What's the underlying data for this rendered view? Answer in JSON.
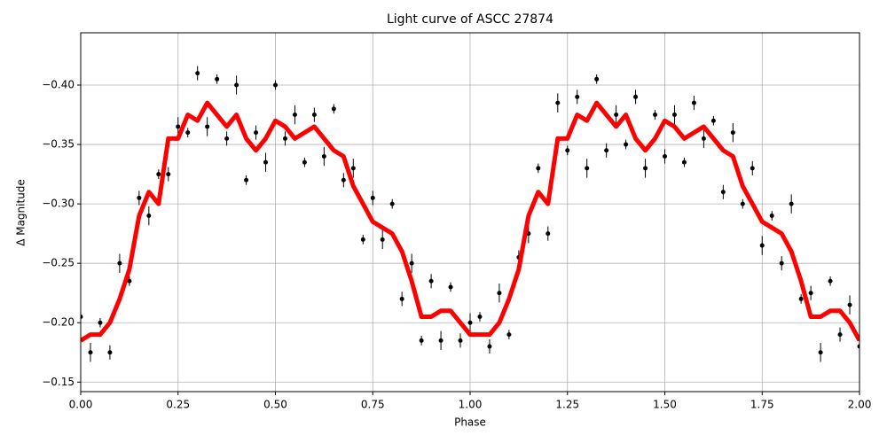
{
  "chart_data": {
    "type": "scatter",
    "title": "Light curve of ASCC 27874",
    "xlabel": "Phase",
    "ylabel": "Δ Magnitude",
    "xlim": [
      0,
      2
    ],
    "ylim": [
      -0.142,
      -0.444
    ],
    "grid": true,
    "xticks": [
      {
        "value": 0,
        "label": "0.00"
      },
      {
        "value": 0.25,
        "label": "0.25"
      },
      {
        "value": 0.5,
        "label": "0.50"
      },
      {
        "value": 0.75,
        "label": "0.75"
      },
      {
        "value": 1,
        "label": "1.00"
      },
      {
        "value": 1.25,
        "label": "1.25"
      },
      {
        "value": 1.5,
        "label": "1.50"
      },
      {
        "value": 1.75,
        "label": "1.75"
      },
      {
        "value": 2,
        "label": "2.00"
      }
    ],
    "yticks": [
      {
        "value": -0.4,
        "label": "−0.40"
      },
      {
        "value": -0.35,
        "label": "−0.35"
      },
      {
        "value": -0.3,
        "label": "−0.30"
      },
      {
        "value": -0.25,
        "label": "−0.25"
      },
      {
        "value": -0.2,
        "label": "−0.20"
      },
      {
        "value": -0.15,
        "label": "−0.15"
      }
    ],
    "series": [
      {
        "type": "errorbar",
        "color": "#000000",
        "x": [
          0,
          0.025,
          0.05,
          0.075,
          0.1,
          0.125,
          0.15,
          0.175,
          0.2,
          0.225,
          0.25,
          0.275,
          0.3,
          0.325,
          0.35,
          0.375,
          0.4,
          0.425,
          0.45,
          0.475,
          0.5,
          0.525,
          0.55,
          0.575,
          0.6,
          0.625,
          0.65,
          0.675,
          0.7,
          0.725,
          0.75,
          0.775,
          0.8,
          0.825,
          0.85,
          0.875,
          0.9,
          0.925,
          0.95,
          0.975,
          1,
          1.025,
          1.05,
          1.075,
          1.1,
          1.125,
          1.15,
          1.175,
          1.2,
          1.225,
          1.25,
          1.275,
          1.3,
          1.325,
          1.35,
          1.375,
          1.4,
          1.425,
          1.45,
          1.475,
          1.5,
          1.525,
          1.55,
          1.575,
          1.6,
          1.625,
          1.65,
          1.675,
          1.7,
          1.725,
          1.75,
          1.775,
          1.8,
          1.825,
          1.85,
          1.875,
          1.9,
          1.925,
          1.95,
          1.975,
          2
        ],
        "values": [
          -0.205,
          -0.175,
          -0.2,
          -0.175,
          -0.25,
          -0.235,
          -0.305,
          -0.29,
          -0.325,
          -0.325,
          -0.365,
          -0.36,
          -0.41,
          -0.365,
          -0.405,
          -0.355,
          -0.4,
          -0.32,
          -0.36,
          -0.335,
          -0.4,
          -0.355,
          -0.375,
          -0.335,
          -0.375,
          -0.34,
          -0.38,
          -0.32,
          -0.33,
          -0.27,
          -0.305,
          -0.27,
          -0.3,
          -0.22,
          -0.25,
          -0.185,
          -0.235,
          -0.185,
          -0.23,
          -0.185,
          -0.2,
          -0.205,
          -0.18,
          -0.225,
          -0.19,
          -0.255,
          -0.275,
          -0.33,
          -0.275,
          -0.385,
          -0.345,
          -0.39,
          -0.33,
          -0.405,
          -0.345,
          -0.375,
          -0.35,
          -0.39,
          -0.33,
          -0.375,
          -0.34,
          -0.375,
          -0.335,
          -0.385,
          -0.355,
          -0.37,
          -0.31,
          -0.36,
          -0.3,
          -0.33,
          -0.265,
          -0.29,
          -0.25,
          -0.3,
          -0.22,
          -0.225,
          -0.175,
          -0.235,
          -0.19,
          -0.215,
          -0.18
        ],
        "errors": [
          0.006,
          0.008,
          0.004,
          0.006,
          0.008,
          0.004,
          0.006,
          0.008,
          0.004,
          0.006,
          0.008,
          0.004,
          0.006,
          0.008,
          0.004,
          0.006,
          0.008,
          0.004,
          0.006,
          0.008,
          0.004,
          0.006,
          0.008,
          0.004,
          0.006,
          0.008,
          0.004,
          0.006,
          0.008,
          0.004,
          0.006,
          0.008,
          0.004,
          0.006,
          0.008,
          0.004,
          0.006,
          0.008,
          0.004,
          0.006,
          0.008,
          0.004,
          0.006,
          0.008,
          0.004,
          0.006,
          0.008,
          0.004,
          0.006,
          0.008,
          0.004,
          0.006,
          0.008,
          0.004,
          0.006,
          0.008,
          0.004,
          0.006,
          0.008,
          0.004,
          0.006,
          0.008,
          0.004,
          0.006,
          0.008,
          0.004,
          0.006,
          0.008,
          0.004,
          0.006,
          0.008,
          0.004,
          0.006,
          0.008,
          0.004,
          0.006,
          0.008,
          0.004,
          0.006,
          0.008,
          0.004
        ]
      },
      {
        "type": "line",
        "color": "#ff0000",
        "x": [
          0,
          0.025,
          0.05,
          0.075,
          0.1,
          0.125,
          0.15,
          0.175,
          0.2,
          0.225,
          0.25,
          0.275,
          0.3,
          0.325,
          0.35,
          0.375,
          0.4,
          0.425,
          0.45,
          0.475,
          0.5,
          0.525,
          0.55,
          0.575,
          0.6,
          0.625,
          0.65,
          0.675,
          0.7,
          0.725,
          0.75,
          0.775,
          0.8,
          0.825,
          0.85,
          0.875,
          0.9,
          0.925,
          0.95,
          0.975,
          1,
          1.025,
          1.05,
          1.075,
          1.1,
          1.125,
          1.15,
          1.175,
          1.2,
          1.225,
          1.25,
          1.275,
          1.3,
          1.325,
          1.35,
          1.375,
          1.4,
          1.425,
          1.45,
          1.475,
          1.5,
          1.525,
          1.55,
          1.575,
          1.6,
          1.625,
          1.65,
          1.675,
          1.7,
          1.725,
          1.75,
          1.775,
          1.8,
          1.825,
          1.85,
          1.875,
          1.9,
          1.925,
          1.95,
          1.975,
          2
        ],
        "values": [
          -0.185,
          -0.19,
          -0.19,
          -0.2,
          -0.22,
          -0.245,
          -0.29,
          -0.31,
          -0.3,
          -0.355,
          -0.355,
          -0.375,
          -0.37,
          -0.385,
          -0.375,
          -0.365,
          -0.375,
          -0.355,
          -0.345,
          -0.355,
          -0.37,
          -0.365,
          -0.355,
          -0.36,
          -0.365,
          -0.355,
          -0.345,
          -0.34,
          -0.315,
          -0.3,
          -0.285,
          -0.28,
          -0.275,
          -0.26,
          -0.235,
          -0.205,
          -0.205,
          -0.21,
          -0.21,
          -0.2,
          -0.19,
          -0.19,
          -0.19,
          -0.2,
          -0.22,
          -0.245,
          -0.29,
          -0.31,
          -0.3,
          -0.355,
          -0.355,
          -0.375,
          -0.37,
          -0.385,
          -0.375,
          -0.365,
          -0.375,
          -0.355,
          -0.345,
          -0.355,
          -0.37,
          -0.365,
          -0.355,
          -0.36,
          -0.365,
          -0.355,
          -0.345,
          -0.34,
          -0.315,
          -0.3,
          -0.285,
          -0.28,
          -0.275,
          -0.26,
          -0.235,
          -0.205,
          -0.205,
          -0.21,
          -0.21,
          -0.2,
          -0.185
        ]
      }
    ]
  }
}
